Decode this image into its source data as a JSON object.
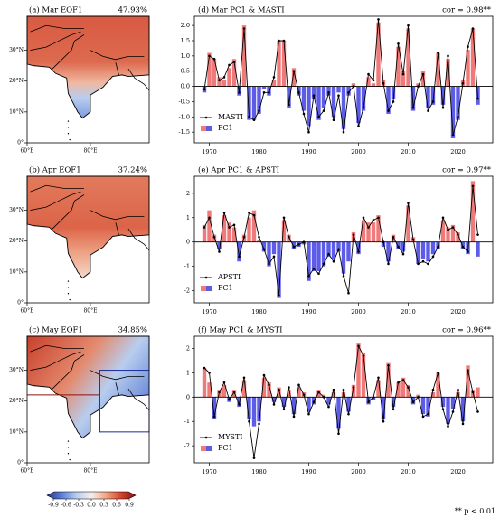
{
  "chart_data": [
    {
      "type": "bar",
      "title": "(d) Mar PC1 & MASTI",
      "annotation": "cor = 0.98**",
      "x": [
        1969,
        1970,
        1971,
        1972,
        1973,
        1974,
        1975,
        1976,
        1977,
        1978,
        1979,
        1980,
        1981,
        1982,
        1983,
        1984,
        1985,
        1986,
        1987,
        1988,
        1989,
        1990,
        1991,
        1992,
        1993,
        1994,
        1995,
        1996,
        1997,
        1998,
        1999,
        2000,
        2001,
        2002,
        2003,
        2004,
        2005,
        2006,
        2007,
        2008,
        2009,
        2010,
        2011,
        2012,
        2013,
        2014,
        2015,
        2016,
        2017,
        2018,
        2019,
        2020,
        2021,
        2022,
        2023,
        2024
      ],
      "xlim": [
        1967,
        2027
      ],
      "xticks": [
        1970,
        1980,
        1990,
        2000,
        2010,
        2020
      ],
      "ylim": [
        -1.85,
        2.3
      ],
      "yticks": [
        -1.5,
        {
          "value": -1,
          "label": "-1.0"
        },
        -0.5,
        {
          "value": 0,
          "label": "0.0"
        },
        0.5,
        {
          "value": 1,
          "label": "1.0"
        },
        1.5,
        {
          "value": 2,
          "label": "2.0"
        }
      ],
      "legend": "lower left",
      "series": [
        {
          "name": "PC1",
          "type": "bar",
          "color": "#f07a7a",
          "negative_color": "#5c5ce8",
          "values": [
            -0.2,
            1.1,
            0.9,
            0.3,
            0.2,
            0.6,
            0.9,
            -0.3,
            2.0,
            -1.1,
            -1.1,
            -0.9,
            -0.1,
            -0.3,
            0.2,
            1.5,
            1.5,
            -0.7,
            0.6,
            -0.3,
            -0.8,
            -1.3,
            -0.4,
            -1.1,
            -0.7,
            -0.3,
            -1.0,
            -0.2,
            -1.4,
            -0.3,
            0.1,
            -1.2,
            -0.8,
            0.3,
            0.1,
            2.1,
            0.2,
            -0.9,
            -0.4,
            1.3,
            0.5,
            1.9,
            -0.8,
            0.1,
            0.5,
            -0.7,
            -0.6,
            1.1,
            -0.6,
            0.9,
            -1.7,
            -1.1,
            0.2,
            1.2,
            1.9,
            -0.6
          ]
        },
        {
          "name": "MASTI",
          "type": "line",
          "color": "#000000",
          "values": [
            -0.1,
            1.0,
            0.9,
            0.2,
            0.3,
            0.7,
            0.8,
            -0.2,
            1.9,
            -1.0,
            -1.1,
            -0.8,
            -0.2,
            -0.2,
            0.3,
            1.5,
            1.5,
            -0.6,
            0.5,
            -0.2,
            -0.9,
            -1.5,
            -0.3,
            -1.0,
            -0.8,
            -0.2,
            -1.1,
            -0.3,
            -1.5,
            -0.2,
            0.0,
            -1.3,
            -0.7,
            0.4,
            0.2,
            2.2,
            0.1,
            -0.8,
            -0.5,
            1.4,
            0.4,
            2.0,
            -0.7,
            0.0,
            0.4,
            -0.8,
            -0.5,
            1.1,
            -0.7,
            1.0,
            -1.6,
            -1.0,
            0.1,
            1.3,
            1.9,
            -0.4
          ]
        }
      ]
    },
    {
      "type": "bar",
      "title": "(e) Apr PC1 & APSTI",
      "annotation": "cor = 0.97**",
      "x": [
        1969,
        1970,
        1971,
        1972,
        1973,
        1974,
        1975,
        1976,
        1977,
        1978,
        1979,
        1980,
        1981,
        1982,
        1983,
        1984,
        1985,
        1986,
        1987,
        1988,
        1989,
        1990,
        1991,
        1992,
        1993,
        1994,
        1995,
        1996,
        1997,
        1998,
        1999,
        2000,
        2001,
        2002,
        2003,
        2004,
        2005,
        2006,
        2007,
        2008,
        2009,
        2010,
        2011,
        2012,
        2013,
        2014,
        2015,
        2016,
        2017,
        2018,
        2019,
        2020,
        2021,
        2022,
        2023,
        2024
      ],
      "xlim": [
        1967,
        2027
      ],
      "xticks": [
        1970,
        1980,
        1990,
        2000,
        2010,
        2020
      ],
      "ylim": [
        -2.5,
        2.7
      ],
      "yticks": [
        -2,
        -1,
        0,
        1,
        2
      ],
      "legend": "lower left",
      "series": [
        {
          "name": "PC1",
          "type": "bar",
          "color": "#f07a7a",
          "negative_color": "#5c5ce8",
          "values": [
            0.7,
            1.3,
            0.3,
            -0.3,
            1.1,
            0.8,
            0.6,
            -0.8,
            0.3,
            1.0,
            1.3,
            0.1,
            -0.4,
            -1.0,
            -0.5,
            -2.3,
            0.9,
            0.3,
            -0.3,
            -0.2,
            -0.1,
            -1.6,
            -1.2,
            -1.2,
            -1.0,
            -0.6,
            -0.7,
            -0.4,
            -1.3,
            -0.8,
            0.4,
            -0.5,
            0.9,
            0.8,
            0.8,
            1.1,
            -0.2,
            -0.8,
            0.3,
            -0.3,
            -0.4,
            1.5,
            0.2,
            -0.9,
            -0.7,
            -0.8,
            -0.5,
            -0.3,
            0.9,
            0.6,
            0.7,
            0.4,
            -0.3,
            -0.5,
            2.5,
            -0.6
          ]
        },
        {
          "name": "APSTI",
          "type": "line",
          "color": "#000000",
          "values": [
            0.6,
            1.0,
            0.2,
            -0.4,
            1.2,
            0.6,
            0.7,
            -0.6,
            0.2,
            1.2,
            1.1,
            0.2,
            -0.3,
            -0.9,
            -0.6,
            -2.2,
            1.0,
            0.2,
            -0.2,
            -0.1,
            0.0,
            -1.4,
            -1.1,
            -1.3,
            -0.9,
            -0.5,
            -0.8,
            -0.3,
            -1.4,
            -2.1,
            0.3,
            -0.4,
            1.0,
            0.6,
            0.9,
            1.0,
            0.0,
            -0.9,
            0.2,
            -0.2,
            -0.5,
            1.6,
            0.1,
            -0.9,
            -0.8,
            -0.9,
            -0.6,
            -0.2,
            1.0,
            0.5,
            0.6,
            0.3,
            -0.2,
            -0.4,
            2.3,
            0.3
          ]
        }
      ]
    },
    {
      "type": "bar",
      "title": "(f) May PC1 & MYSTI",
      "annotation": "cor = 0.96**",
      "x": [
        1969,
        1970,
        1971,
        1972,
        1973,
        1974,
        1975,
        1976,
        1977,
        1978,
        1979,
        1980,
        1981,
        1982,
        1983,
        1984,
        1985,
        1986,
        1987,
        1988,
        1989,
        1990,
        1991,
        1992,
        1993,
        1994,
        1995,
        1996,
        1997,
        1998,
        1999,
        2000,
        2001,
        2002,
        2003,
        2004,
        2005,
        2006,
        2007,
        2008,
        2009,
        2010,
        2011,
        2012,
        2013,
        2014,
        2015,
        2016,
        2017,
        2018,
        2019,
        2020,
        2021,
        2022,
        2023,
        2024
      ],
      "xlim": [
        1967,
        2027
      ],
      "xticks": [
        1970,
        1980,
        1990,
        2000,
        2010,
        2020
      ],
      "ylim": [
        -2.7,
        2.5
      ],
      "yticks": [
        -2,
        -1,
        0,
        1,
        2
      ],
      "legend": "lower left",
      "series": [
        {
          "name": "PC1",
          "type": "bar",
          "color": "#f07a7a",
          "negative_color": "#5c5ce8",
          "values": [
            1.2,
            0.6,
            -0.9,
            0.3,
            0.5,
            -0.2,
            0.3,
            -0.4,
            0.7,
            -0.9,
            -1.2,
            -1.0,
            0.8,
            0.6,
            -0.2,
            0.4,
            -0.4,
            0.3,
            -0.7,
            0.4,
            0.2,
            -0.6,
            -0.3,
            0.3,
            0.1,
            -0.3,
            0.2,
            -1.3,
            0.2,
            -0.6,
            0.5,
            2.2,
            1.8,
            -0.3,
            -0.1,
            0.7,
            -0.9,
            1.4,
            -0.4,
            0.6,
            0.8,
            0.5,
            -0.3,
            0.1,
            -0.7,
            -0.8,
            0.2,
            1.0,
            -0.4,
            -1.1,
            -0.5,
            0.2,
            -1.0,
            1.3,
            0.3,
            0.4
          ]
        },
        {
          "name": "MYSTI",
          "type": "line",
          "color": "#000000",
          "values": [
            1.2,
            1.0,
            -0.8,
            0.2,
            0.6,
            -0.1,
            0.2,
            -0.3,
            0.8,
            -1.0,
            -2.5,
            -1.1,
            0.9,
            0.5,
            -0.3,
            0.3,
            -0.5,
            0.4,
            -0.8,
            0.5,
            0.1,
            -0.7,
            -0.2,
            0.2,
            0.0,
            -0.4,
            0.3,
            -1.5,
            0.3,
            -0.7,
            0.4,
            2.1,
            1.7,
            -0.2,
            0.0,
            0.8,
            -1.0,
            1.3,
            -0.5,
            0.6,
            0.7,
            0.4,
            -0.2,
            0.0,
            -0.8,
            -0.7,
            0.3,
            1.0,
            -0.5,
            -1.2,
            -0.6,
            0.3,
            -1.1,
            1.1,
            0.2,
            -0.6
          ]
        }
      ]
    }
  ],
  "maps": [
    {
      "title": "(a) Mar EOF1",
      "variance": "47.93%"
    },
    {
      "title": "(b) Apr EOF1",
      "variance": "37.24%"
    },
    {
      "title": "(c) May EOF1",
      "variance": "34.85%"
    }
  ],
  "map_axes": {
    "lon_lim": [
      60,
      98.6
    ],
    "lat_lim": [
      0,
      41
    ],
    "lon_ticks": [
      {
        "value": 60,
        "label": "60°E"
      },
      {
        "value": 80,
        "label": "80°E"
      }
    ],
    "lat_ticks": [
      {
        "value": 0,
        "label": "0°"
      },
      {
        "value": 10,
        "label": "10°N"
      },
      {
        "value": 20,
        "label": "20°N"
      },
      {
        "value": 30,
        "label": "30°N"
      }
    ]
  },
  "colorbar": {
    "lim": [
      -1.05,
      1.05
    ],
    "colors": [
      "#2a3590",
      "#5b7fd8",
      "#b9cdee",
      "#f4efee",
      "#f2a583",
      "#d4452d",
      "#8c0b1c"
    ],
    "ticks": [
      -0.9,
      -0.6,
      -0.3,
      {
        "value": 0,
        "label": "0.0"
      },
      0.3,
      0.6,
      0.9
    ]
  },
  "footnote": "** p < 0.01"
}
